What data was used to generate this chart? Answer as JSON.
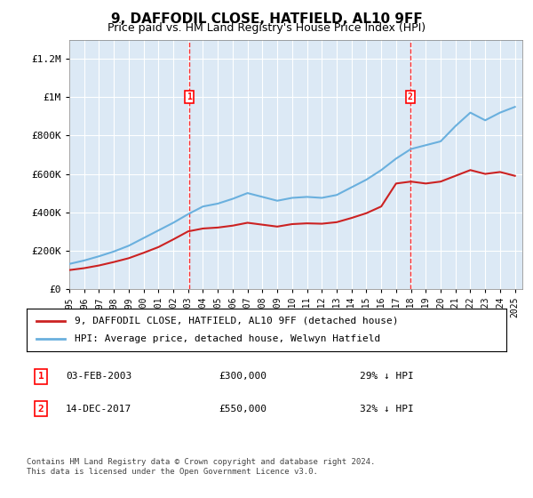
{
  "title": "9, DAFFODIL CLOSE, HATFIELD, AL10 9FF",
  "subtitle": "Price paid vs. HM Land Registry's House Price Index (HPI)",
  "bg_color": "#dce9f5",
  "plot_bg_color": "#dce9f5",
  "hpi_color": "#6ab0de",
  "price_color": "#cc2222",
  "marker1_x": 2003.09,
  "marker2_x": 2017.95,
  "marker1_label": "1",
  "marker2_label": "2",
  "legend_label_red": "9, DAFFODIL CLOSE, HATFIELD, AL10 9FF (detached house)",
  "legend_label_blue": "HPI: Average price, detached house, Welwyn Hatfield",
  "transaction1_num": "1",
  "transaction1_date": "03-FEB-2003",
  "transaction1_price": "£300,000",
  "transaction1_hpi": "29% ↓ HPI",
  "transaction2_num": "2",
  "transaction2_date": "14-DEC-2017",
  "transaction2_price": "£550,000",
  "transaction2_hpi": "32% ↓ HPI",
  "footer": "Contains HM Land Registry data © Crown copyright and database right 2024.\nThis data is licensed under the Open Government Licence v3.0.",
  "ylim": [
    0,
    1300000
  ],
  "xlim_start": 1995,
  "xlim_end": 2025.5,
  "yticks": [
    0,
    200000,
    400000,
    600000,
    800000,
    1000000,
    1200000
  ],
  "ytick_labels": [
    "£0",
    "£200K",
    "£400K",
    "£600K",
    "£800K",
    "£1M",
    "£1.2M"
  ]
}
